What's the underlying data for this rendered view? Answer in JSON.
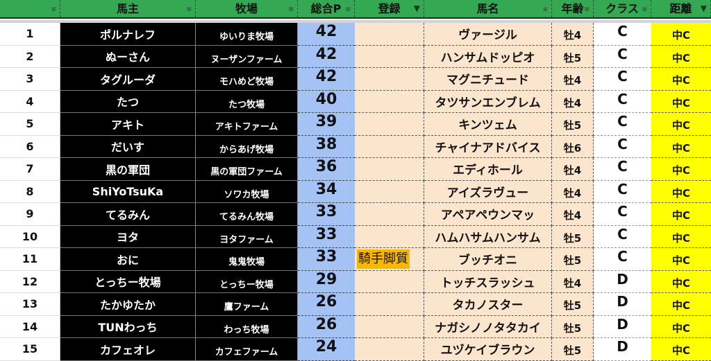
{
  "headers": [
    "",
    "馬主",
    "牧場",
    "総合P",
    "登録",
    "馬名",
    "年齢",
    "クラス",
    "距離"
  ],
  "filters_active": [
    false,
    false,
    false,
    false,
    true,
    false,
    false,
    false,
    true
  ],
  "colors": {
    "header": "#34a853",
    "points": "#a4c2f4",
    "peach": "#fce5cd",
    "distance": "#ffff00",
    "badge": "#f9b800"
  },
  "rows": [
    {
      "no": "1",
      "owner": "ポルナレフ",
      "farm": "ゆいりま牧場",
      "points": "42",
      "reg": "",
      "horse": "ヴァージル",
      "age": "牡4",
      "class": "C",
      "dist": "中C"
    },
    {
      "no": "2",
      "owner": "ぬーさん",
      "farm": "ヌーザンファーム",
      "points": "42",
      "reg": "",
      "horse": "ハンサムドッピオ",
      "age": "牡5",
      "class": "C",
      "dist": "中C"
    },
    {
      "no": "3",
      "owner": "タグルーダ",
      "farm": "モハめど牧場",
      "points": "42",
      "reg": "",
      "horse": "マグニチュード",
      "age": "牡4",
      "class": "C",
      "dist": "中C"
    },
    {
      "no": "4",
      "owner": "たつ",
      "farm": "たつ牧場",
      "points": "40",
      "reg": "",
      "horse": "タツサンエンブレム",
      "age": "牡4",
      "class": "C",
      "dist": "中C"
    },
    {
      "no": "5",
      "owner": "アキト",
      "farm": "アキトファーム",
      "points": "39",
      "reg": "",
      "horse": "キンツェム",
      "age": "牡5",
      "class": "C",
      "dist": "中C"
    },
    {
      "no": "6",
      "owner": "だいす",
      "farm": "からあげ牧場",
      "points": "38",
      "reg": "",
      "horse": "チャイナアドバイス",
      "age": "牡6",
      "class": "C",
      "dist": "中C"
    },
    {
      "no": "7",
      "owner": "黒の軍団",
      "farm": "黒の軍団ファーム",
      "points": "36",
      "reg": "",
      "horse": "エディホール",
      "age": "牡4",
      "class": "C",
      "dist": "中C"
    },
    {
      "no": "8",
      "owner": "ShiYoTsuKa",
      "farm": "ソワカ牧場",
      "points": "34",
      "reg": "",
      "horse": "アイズラヴュー",
      "age": "牡4",
      "class": "C",
      "dist": "中C"
    },
    {
      "no": "9",
      "owner": "てるみん",
      "farm": "てるみん牧場",
      "points": "33",
      "reg": "",
      "horse": "アペアペウンマッ",
      "age": "牡4",
      "class": "C",
      "dist": "中C"
    },
    {
      "no": "10",
      "owner": "ヨタ",
      "farm": "ヨタファーム",
      "points": "33",
      "reg": "",
      "horse": "ハムハサムハンサム",
      "age": "牡5",
      "class": "C",
      "dist": "中C"
    },
    {
      "no": "11",
      "owner": "おに",
      "farm": "鬼鬼牧場",
      "points": "33",
      "reg": "騎手脚質",
      "horse": "ブッチオニ",
      "age": "牡5",
      "class": "C",
      "dist": "中C"
    },
    {
      "no": "12",
      "owner": "とっちー牧場",
      "farm": "とっちー牧場",
      "points": "29",
      "reg": "",
      "horse": "トッチスラッシュ",
      "age": "牡4",
      "class": "D",
      "dist": "中C"
    },
    {
      "no": "13",
      "owner": "たかゆたか",
      "farm": "鷹ファーム",
      "points": "26",
      "reg": "",
      "horse": "タカノスター",
      "age": "牡5",
      "class": "D",
      "dist": "中C"
    },
    {
      "no": "14",
      "owner": "TUNわっち",
      "farm": "わっち牧場",
      "points": "26",
      "reg": "",
      "horse": "ナガシノノタタカイ",
      "age": "牡5",
      "class": "D",
      "dist": "中C"
    },
    {
      "no": "15",
      "owner": "カフェオレ",
      "farm": "カフェファーム",
      "points": "24",
      "reg": "",
      "horse": "ユヅケイブラウン",
      "age": "牡5",
      "class": "D",
      "dist": "中C"
    }
  ]
}
